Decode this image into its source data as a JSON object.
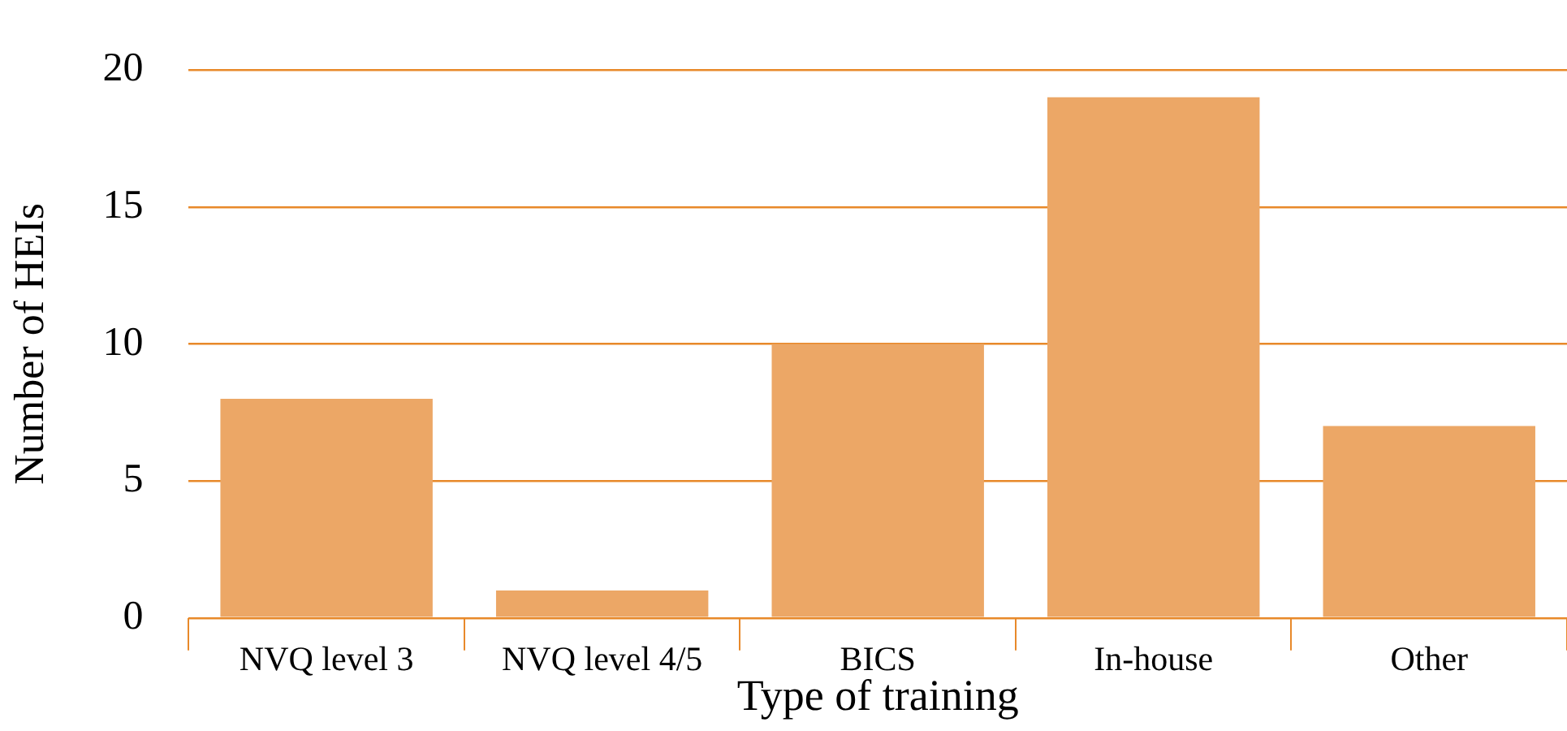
{
  "chart_data": {
    "type": "bar",
    "xlabel": "Type of training",
    "ylabel": "Number of HEIs",
    "categories": [
      "NVQ level 3",
      "NVQ level 4/5",
      "BICS",
      "In-house",
      "Other"
    ],
    "values": [
      8,
      1,
      10,
      19,
      7
    ],
    "color": "#eca766",
    "ylim": [
      0,
      20
    ],
    "yticks": [
      0,
      5,
      10,
      15,
      20
    ],
    "grid": "y",
    "legend": false
  }
}
